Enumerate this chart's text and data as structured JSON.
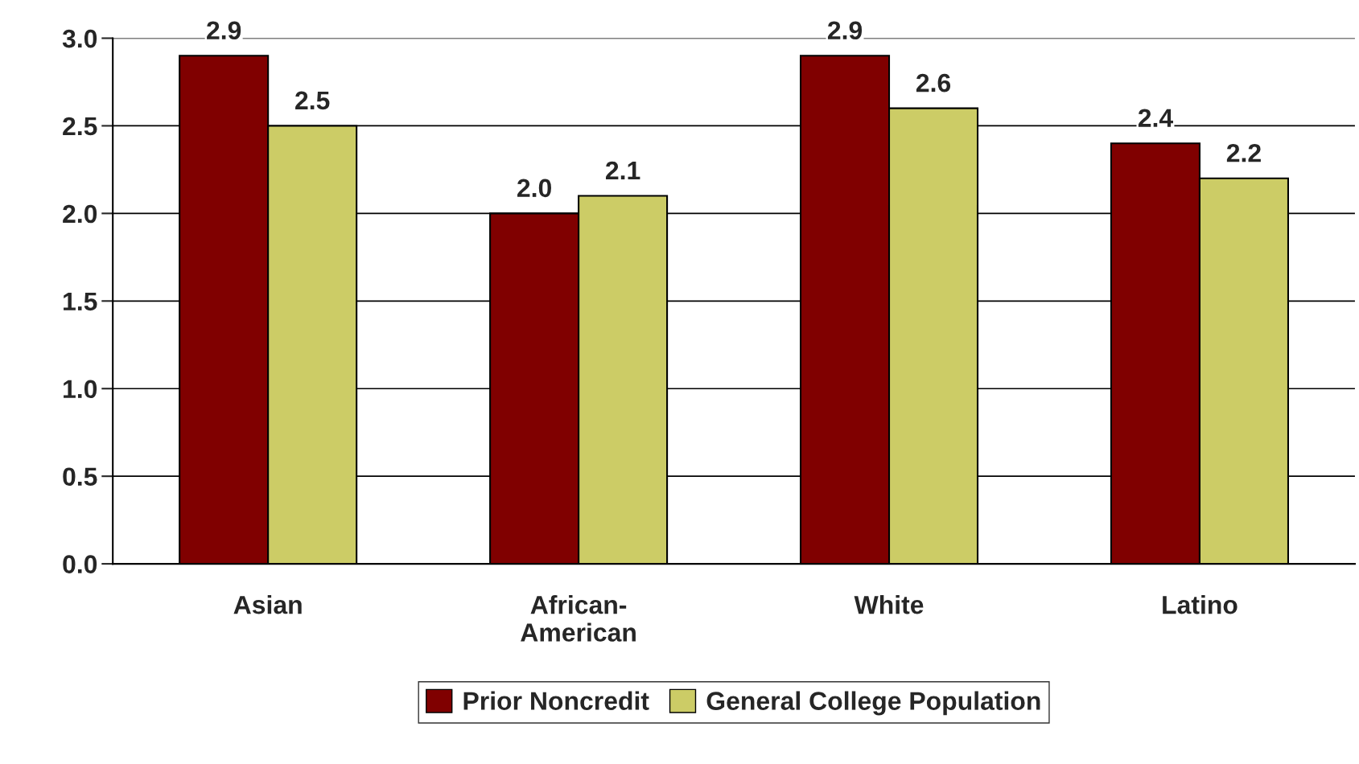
{
  "chart_data": {
    "type": "bar",
    "categories": [
      "Asian",
      "African-\nAmerican",
      "White",
      "Latino"
    ],
    "series": [
      {
        "name": "Prior Noncredit",
        "color": "#800000",
        "values": [
          2.9,
          2.0,
          2.9,
          2.4
        ],
        "value_labels": [
          "2.9",
          "2.0",
          "2.9",
          "2.4"
        ]
      },
      {
        "name": "General College Population",
        "color": "#cccc66",
        "values": [
          2.5,
          2.1,
          2.6,
          2.2
        ],
        "value_labels": [
          "2.5",
          "2.1",
          "2.6",
          "2.2"
        ]
      }
    ],
    "ylim": [
      0,
      3.0
    ],
    "yticks": [
      {
        "value": 0,
        "label": "0.0"
      },
      {
        "value": 0.5,
        "label": "0.5"
      },
      {
        "value": 1.0,
        "label": "1.0"
      },
      {
        "value": 1.5,
        "label": "1.5"
      },
      {
        "value": 2.0,
        "label": "2.0"
      },
      {
        "value": 2.5,
        "label": "2.5"
      },
      {
        "value": 3.0,
        "label": "3.0"
      }
    ],
    "grid": "y",
    "legend": "bottom"
  }
}
